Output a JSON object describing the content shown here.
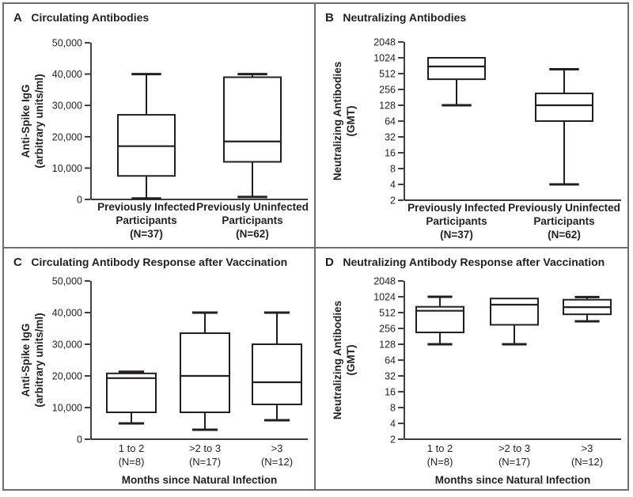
{
  "colors": {
    "ink": "#231f20",
    "panel_border": "#6e6e6e",
    "background": "#ffffff"
  },
  "chart_data": [
    {
      "type": "box",
      "panel_letter": "A",
      "title": "Circulating Antibodies",
      "ylabel_lines": [
        "Anti-Spike IgG",
        "(arbitrary units/ml)"
      ],
      "yscale": "linear",
      "ylim": [
        0,
        50000
      ],
      "yticks": [
        0,
        10000,
        20000,
        30000,
        40000,
        50000
      ],
      "ytick_labels": [
        "0",
        "10,000",
        "20,000",
        "30,000",
        "40,000",
        "50,000"
      ],
      "categories": [
        [
          "Previously Infected",
          "Participants",
          "(N=37)"
        ],
        [
          "Previously Uninfected",
          "Participants",
          "(N=62)"
        ]
      ],
      "boxes": [
        {
          "whisker_low": 300,
          "q1": 7500,
          "median": 17000,
          "q3": 27000,
          "whisker_high": 40000
        },
        {
          "whisker_low": 800,
          "q1": 12000,
          "median": 18500,
          "q3": 39000,
          "whisker_high": 40000
        }
      ]
    },
    {
      "type": "box",
      "panel_letter": "B",
      "title": "Neutralizing Antibodies",
      "ylabel_lines": [
        "Neutralizing Antibodies",
        "(GMT)"
      ],
      "yscale": "log2",
      "ylim": [
        2,
        2048
      ],
      "yticks": [
        2,
        4,
        8,
        16,
        32,
        64,
        128,
        256,
        512,
        1024,
        2048
      ],
      "ytick_labels": [
        "2",
        "4",
        "8",
        "16",
        "32",
        "64",
        "128",
        "256",
        "512",
        "1024",
        "2048"
      ],
      "categories": [
        [
          "Previously Infected",
          "Participants",
          "(N=37)"
        ],
        [
          "Previously Uninfected",
          "Participants",
          "(N=62)"
        ]
      ],
      "boxes": [
        {
          "whisker_low": 128,
          "q1": 400,
          "median": 700,
          "q3": 1024,
          "whisker_high": 1024
        },
        {
          "whisker_low": 4,
          "q1": 64,
          "median": 128,
          "q3": 215,
          "whisker_high": 620
        }
      ]
    },
    {
      "type": "box",
      "panel_letter": "C",
      "title": "Circulating Antibody Response after Vaccination",
      "ylabel_lines": [
        "Anti-Spike IgG",
        "(arbitrary units/ml)"
      ],
      "xlabel": "Months since Natural Infection",
      "yscale": "linear",
      "ylim": [
        0,
        50000
      ],
      "yticks": [
        0,
        10000,
        20000,
        30000,
        40000,
        50000
      ],
      "ytick_labels": [
        "0",
        "10,000",
        "20,000",
        "30,000",
        "40,000",
        "50,000"
      ],
      "categories": [
        [
          "1 to 2",
          "(N=8)"
        ],
        [
          ">2 to 3",
          "(N=17)"
        ],
        [
          ">3",
          "(N=12)"
        ]
      ],
      "boxes": [
        {
          "whisker_low": 5000,
          "q1": 8500,
          "median": 19300,
          "q3": 20800,
          "whisker_high": 21300
        },
        {
          "whisker_low": 3000,
          "q1": 8500,
          "median": 20000,
          "q3": 33500,
          "whisker_high": 40000
        },
        {
          "whisker_low": 6000,
          "q1": 11000,
          "median": 18000,
          "q3": 30000,
          "whisker_high": 40000
        }
      ]
    },
    {
      "type": "box",
      "panel_letter": "D",
      "title": "Neutralizing Antibody Response after Vaccination",
      "ylabel_lines": [
        "Neutralizing Antibodies",
        "(GMT)"
      ],
      "xlabel": "Months since Natural Infection",
      "yscale": "log2",
      "ylim": [
        2,
        2048
      ],
      "yticks": [
        2,
        4,
        8,
        16,
        32,
        64,
        128,
        256,
        512,
        1024,
        2048
      ],
      "ytick_labels": [
        "2",
        "4",
        "8",
        "16",
        "32",
        "64",
        "128",
        "256",
        "512",
        "1024",
        "2048"
      ],
      "categories": [
        [
          "1 to 2",
          "(N=8)"
        ],
        [
          ">2 to 3",
          "(N=17)"
        ],
        [
          ">3",
          "(N=12)"
        ]
      ],
      "boxes": [
        {
          "whisker_low": 128,
          "q1": 215,
          "median": 555,
          "q3": 660,
          "whisker_high": 1024
        },
        {
          "whisker_low": 128,
          "q1": 300,
          "median": 724,
          "q3": 950,
          "whisker_high": 950
        },
        {
          "whisker_low": 350,
          "q1": 475,
          "median": 650,
          "q3": 900,
          "whisker_high": 1010
        }
      ]
    }
  ]
}
